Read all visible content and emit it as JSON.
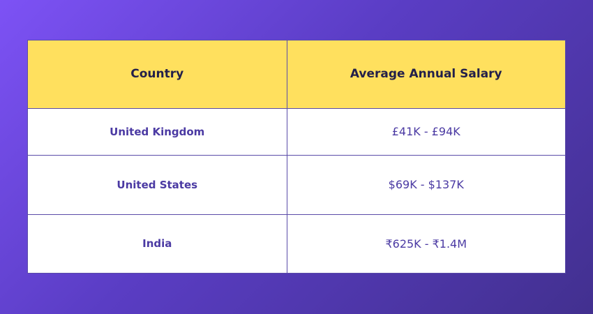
{
  "table": {
    "headers": [
      "Country",
      "Average Annual Salary"
    ],
    "rows": [
      {
        "country": "United Kingdom",
        "salary": "£41K - £94K"
      },
      {
        "country": "United States",
        "salary": "$69K - $137K"
      },
      {
        "country": "India",
        "salary": "₹625K - ₹1.4M"
      }
    ]
  },
  "colors": {
    "header_bg": "#ffe05e",
    "header_text": "#23204a",
    "body_text": "#4b3aa3",
    "border": "#5a4ba8",
    "background_gradient": [
      "#7d52f5",
      "#42308f"
    ]
  }
}
